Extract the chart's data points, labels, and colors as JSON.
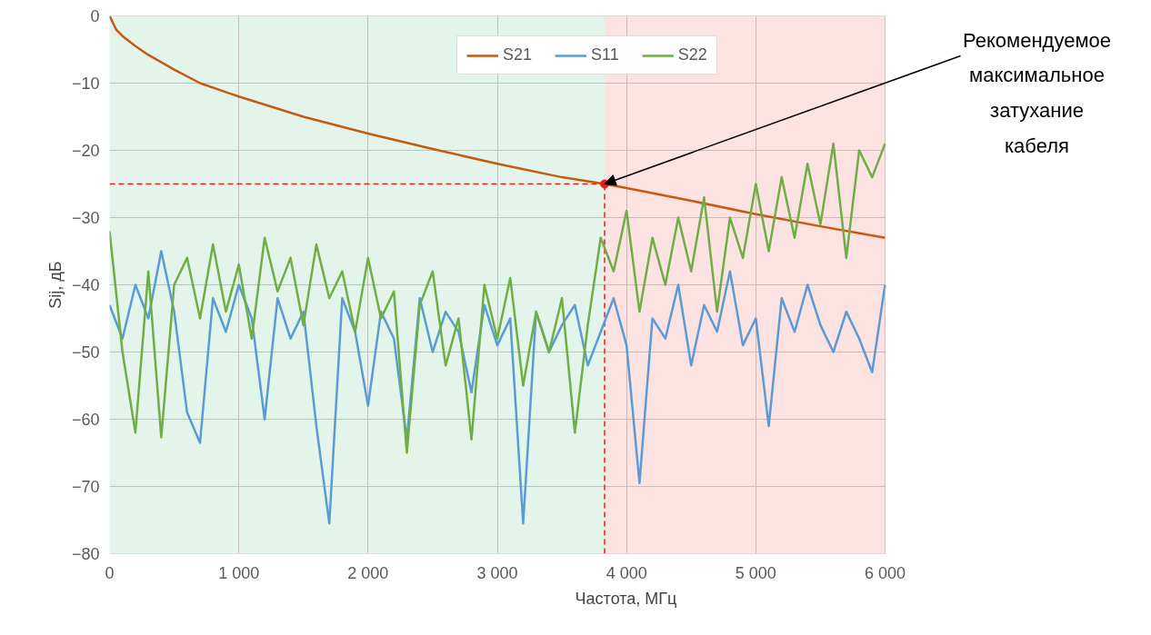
{
  "chart_data": {
    "type": "line",
    "xlabel": "Частота, МГц",
    "ylabel": "Sij, дБ",
    "xlim": [
      0,
      6000
    ],
    "ylim": [
      -80,
      0
    ],
    "xticks": [
      0,
      {
        "value": 1000,
        "label": "1 000"
      },
      {
        "value": 2000,
        "label": "2 000"
      },
      {
        "value": 3000,
        "label": "3 000"
      },
      {
        "value": 4000,
        "label": "4 000"
      },
      {
        "value": 5000,
        "label": "5 000"
      },
      {
        "value": 6000,
        "label": "6 000"
      }
    ],
    "yticks": [
      -80,
      -70,
      -60,
      -50,
      -40,
      -30,
      -20,
      -10,
      0
    ],
    "grid": true,
    "legend": "top right",
    "marker": "none",
    "line_style": "solid",
    "x": [
      0,
      100,
      200,
      300,
      400,
      500,
      600,
      700,
      800,
      900,
      1000,
      1100,
      1200,
      1300,
      1400,
      1500,
      1600,
      1700,
      1800,
      1900,
      2000,
      2100,
      2200,
      2300,
      2400,
      2500,
      2600,
      2700,
      2800,
      2900,
      3000,
      3100,
      3200,
      3300,
      3400,
      3500,
      3600,
      3700,
      3800,
      3900,
      4000,
      4100,
      4200,
      4300,
      4400,
      4500,
      4600,
      4700,
      4800,
      4900,
      5000,
      5100,
      5200,
      5300,
      5400,
      5500,
      5600,
      5700,
      5800,
      5900,
      6000
    ],
    "series": [
      {
        "name": "S21",
        "color": "#c55a11",
        "x": [
          0,
          50,
          100,
          200,
          300,
          500,
          700,
          1000,
          1500,
          2000,
          2500,
          3000,
          3500,
          3830,
          4000,
          4500,
          5000,
          5500,
          6000
        ],
        "values": [
          0,
          -2,
          -3,
          -4.5,
          -5.8,
          -8,
          -10,
          -12,
          -15,
          -17.5,
          -19.8,
          -22,
          -24,
          -25,
          -25.6,
          -27.5,
          -29.5,
          -31.3,
          -33
        ]
      },
      {
        "name": "S11",
        "color": "#5b9bd5",
        "values": [
          -43,
          -48,
          -40,
          -45,
          -35,
          -44,
          -59,
          -63.5,
          -42,
          -47,
          -40,
          -45,
          -60,
          -42,
          -48,
          -44,
          -61,
          -75.5,
          -42,
          -47,
          -58,
          -44,
          -48,
          -63,
          -42,
          -50,
          -44,
          -47,
          -56,
          -43,
          -49,
          -45,
          -75.5,
          -44,
          -50,
          -46,
          -43,
          -52,
          -47,
          -42,
          -49,
          -69.5,
          -45,
          -48,
          -40,
          -52,
          -43,
          -47,
          -38,
          -49,
          -45,
          -61,
          -42,
          -47,
          -40,
          -46,
          -50,
          -44,
          -48,
          -53,
          -40
        ]
      },
      {
        "name": "S22",
        "color": "#70ad47",
        "values": [
          -32,
          -50,
          -62,
          -38,
          -62.7,
          -40,
          -36,
          -45,
          -34,
          -44,
          -37,
          -48,
          -33,
          -41,
          -36,
          -46,
          -34,
          -42,
          -38,
          -47,
          -36,
          -45,
          -41,
          -65,
          -43,
          -38,
          -52,
          -45,
          -63,
          -40,
          -48,
          -39,
          -55,
          -44,
          -50,
          -42,
          -62,
          -46,
          -33,
          -38,
          -29,
          -44,
          -33,
          -40,
          -30,
          -38,
          -27,
          -44,
          -30,
          -36,
          -25,
          -35,
          -24,
          -33,
          -22,
          -31,
          -19,
          -36,
          -20,
          -24,
          -19
        ]
      }
    ],
    "bands": [
      {
        "axis": "x",
        "from": 0,
        "to": 3830,
        "color": "#e3f5ea"
      },
      {
        "axis": "x",
        "from": 3830,
        "to": 6000,
        "color": "#fde2e2"
      }
    ],
    "ref_lines": [
      {
        "axis": "y",
        "value": -25,
        "color": "#e02020",
        "line_style": "dashed"
      },
      {
        "axis": "x",
        "value": 3830,
        "color": "#e02020",
        "line_style": "dashed"
      }
    ],
    "annotations": [
      {
        "text": "Рекомендуемое максимальное затухание кабеля",
        "x": 3830,
        "y": -25
      }
    ]
  }
}
